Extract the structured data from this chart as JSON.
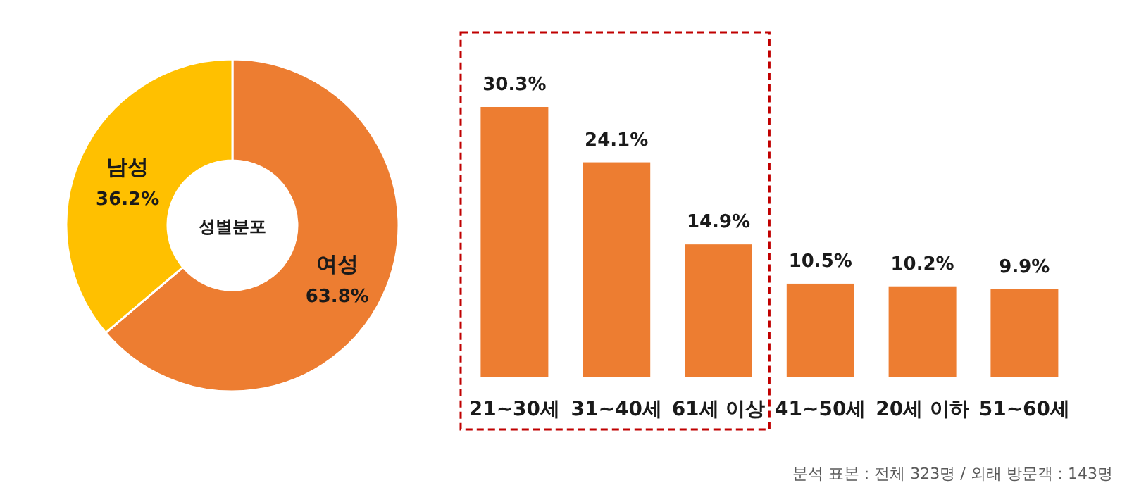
{
  "chart_data": [
    {
      "type": "donut",
      "title": "성별분포",
      "categories": [
        "여성",
        "남성"
      ],
      "values": [
        63.8,
        36.2
      ],
      "value_labels": [
        "63.8%",
        "36.2%"
      ],
      "colors": [
        "#ed7d31",
        "#ffc000"
      ]
    },
    {
      "type": "bar",
      "categories": [
        "21~30세",
        "31~40세",
        "61세 이상",
        "41~50세",
        "20세 이하",
        "51~60세"
      ],
      "values": [
        30.3,
        24.1,
        14.9,
        10.5,
        10.2,
        9.9
      ],
      "value_labels": [
        "30.3%",
        "24.1%",
        "14.9%",
        "10.5%",
        "10.2%",
        "9.9%"
      ],
      "color": "#ed7d31",
      "annotations": [
        "분석 표본 : 전체 323명 / 외래 방문객 : 143명"
      ]
    }
  ]
}
